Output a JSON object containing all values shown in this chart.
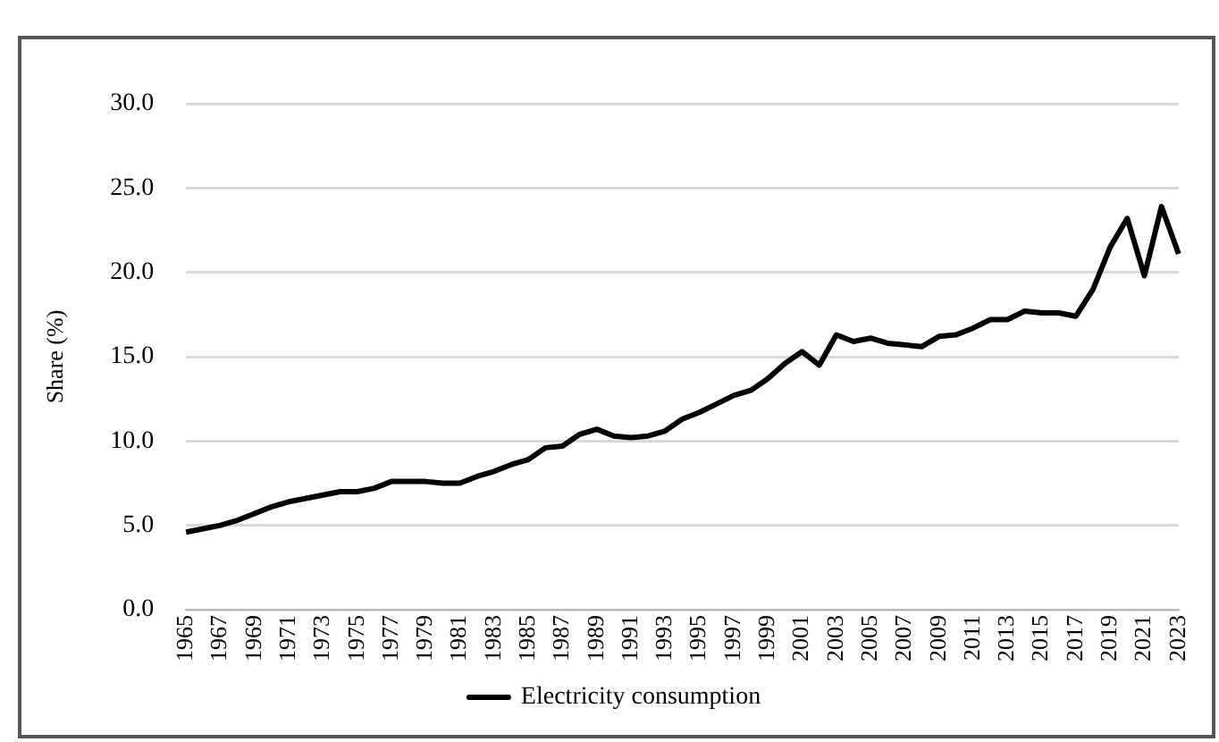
{
  "chart_data": {
    "type": "line",
    "ylabel": "Share (%)",
    "categories": [
      "1965",
      null,
      "1967",
      null,
      "1969",
      null,
      "1971",
      null,
      "1973",
      null,
      "1975",
      null,
      "1977",
      null,
      "1979",
      null,
      "1981",
      null,
      "1983",
      null,
      "1985",
      null,
      "1987",
      null,
      "1989",
      null,
      "1991",
      null,
      "1993",
      null,
      "1995",
      null,
      "1997",
      null,
      "1999",
      null,
      "2001",
      null,
      "2003",
      null,
      "2005",
      null,
      "2007",
      null,
      "2009",
      null,
      "2011",
      null,
      "2013",
      null,
      "2015",
      null,
      "2017",
      null,
      "2019",
      null,
      "2021",
      null,
      "2023"
    ],
    "series": [
      {
        "name": "Electricity consumption",
        "color": "#000000",
        "values": [
          4.6,
          4.8,
          5.0,
          5.3,
          5.7,
          6.1,
          6.4,
          6.6,
          6.8,
          7.0,
          7.0,
          7.2,
          7.6,
          7.6,
          7.6,
          7.5,
          7.5,
          7.9,
          8.2,
          8.6,
          8.9,
          9.6,
          9.7,
          10.4,
          10.7,
          10.3,
          10.2,
          10.3,
          10.6,
          11.3,
          11.7,
          12.2,
          12.7,
          13.0,
          13.7,
          14.6,
          15.3,
          14.5,
          16.3,
          15.9,
          16.1,
          15.8,
          15.7,
          15.6,
          16.2,
          16.3,
          16.7,
          17.2,
          17.2,
          17.7,
          17.6,
          17.6,
          17.4,
          19.0,
          21.5,
          23.2,
          19.8,
          23.9,
          21.1
        ]
      }
    ],
    "ylim": [
      0,
      30
    ],
    "yticks": [
      {
        "value": 0,
        "label": "0.0"
      },
      {
        "value": 5,
        "label": "5.0"
      },
      {
        "value": 10,
        "label": "10.0"
      },
      {
        "value": 15,
        "label": "15.0"
      },
      {
        "value": 20,
        "label": "20.0"
      },
      {
        "value": 25,
        "label": "25.0"
      },
      {
        "value": 30,
        "label": "30.0"
      }
    ],
    "grid": "y",
    "legend": "bottom",
    "marker": "none",
    "line_style": "solid"
  }
}
